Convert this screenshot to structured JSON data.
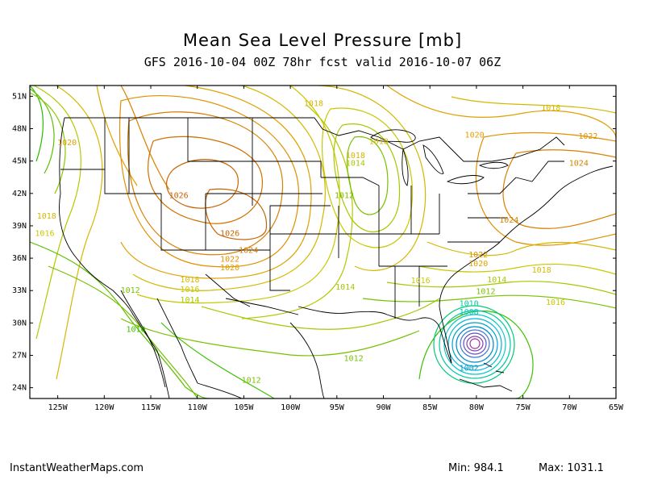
{
  "title": "Mean Sea Level Pressure [mb]",
  "subtitle": "GFS 2016-10-04 00Z 78hr fcst valid 2016-10-07 06Z",
  "footer": {
    "site": "InstantWeatherMaps.com",
    "min": "Min:  984.1",
    "max": "Max: 1031.1"
  },
  "lat_labels": [
    "51N",
    "48N",
    "45N",
    "42N",
    "39N",
    "36N",
    "33N",
    "30N",
    "27N",
    "24N"
  ],
  "lon_labels": [
    "125W",
    "120W",
    "115W",
    "110W",
    "105W",
    "100W",
    "95W",
    "90W",
    "85W",
    "80W",
    "75W",
    "70W",
    "65W"
  ],
  "contour_labels": [
    {
      "text": "1018",
      "color": "#d4b800",
      "lon": -97.5,
      "lat": 50.3
    },
    {
      "text": "1018",
      "color": "#d4b800",
      "lon": -72,
      "lat": 49.9
    },
    {
      "text": "1018",
      "color": "#d4b800",
      "lon": -90.5,
      "lat": 46.8
    },
    {
      "text": "1018",
      "color": "#d4b800",
      "lon": -93,
      "lat": 45.5
    },
    {
      "text": "1014",
      "color": "#a6c800",
      "lon": -93,
      "lat": 44.8
    },
    {
      "text": "1020",
      "color": "#e0a000",
      "lon": -80.2,
      "lat": 47.4
    },
    {
      "text": "1022",
      "color": "#e09000",
      "lon": -68,
      "lat": 47.3
    },
    {
      "text": "1024",
      "color": "#d88000",
      "lon": -69,
      "lat": 44.8
    },
    {
      "text": "1020",
      "color": "#e0a000",
      "lon": -124,
      "lat": 46.7
    },
    {
      "text": "1026",
      "color": "#c86400",
      "lon": -112,
      "lat": 41.8
    },
    {
      "text": "1012",
      "color": "#78c000",
      "lon": -94.2,
      "lat": 41.8
    },
    {
      "text": "1018",
      "color": "#d4b800",
      "lon": -126.2,
      "lat": 39.9
    },
    {
      "text": "1016",
      "color": "#c8c800",
      "lon": -126.4,
      "lat": 38.3
    },
    {
      "text": "1026",
      "color": "#c86400",
      "lon": -106.5,
      "lat": 38.3
    },
    {
      "text": "1024",
      "color": "#d88000",
      "lon": -104.5,
      "lat": 36.7
    },
    {
      "text": "1022",
      "color": "#e09000",
      "lon": -106.5,
      "lat": 35.9
    },
    {
      "text": "1020",
      "color": "#e0a000",
      "lon": -106.5,
      "lat": 35.1
    },
    {
      "text": "1024",
      "color": "#d88000",
      "lon": -76.5,
      "lat": 39.5
    },
    {
      "text": "1022",
      "color": "#e09000",
      "lon": -79.8,
      "lat": 36.3
    },
    {
      "text": "1020",
      "color": "#e0a000",
      "lon": -79.8,
      "lat": 35.5
    },
    {
      "text": "1018",
      "color": "#d4b800",
      "lon": -73,
      "lat": 34.9
    },
    {
      "text": "1018",
      "color": "#d4b800",
      "lon": -110.8,
      "lat": 34.0
    },
    {
      "text": "1016",
      "color": "#c8c800",
      "lon": -110.8,
      "lat": 33.1
    },
    {
      "text": "1014",
      "color": "#a6c800",
      "lon": -110.8,
      "lat": 32.1
    },
    {
      "text": "1012",
      "color": "#78c000",
      "lon": -117.2,
      "lat": 33.0
    },
    {
      "text": "1014",
      "color": "#a6c800",
      "lon": -94.1,
      "lat": 33.3
    },
    {
      "text": "1016",
      "color": "#c8c800",
      "lon": -86,
      "lat": 33.9
    },
    {
      "text": "1014",
      "color": "#a6c800",
      "lon": -77.8,
      "lat": 34.0
    },
    {
      "text": "1012",
      "color": "#78c000",
      "lon": -79,
      "lat": 32.9
    },
    {
      "text": "1016",
      "color": "#c8c800",
      "lon": -71.5,
      "lat": 31.9
    },
    {
      "text": "1010",
      "color": "#3cc000",
      "lon": -116.6,
      "lat": 29.4
    },
    {
      "text": "1012",
      "color": "#78c000",
      "lon": -93.2,
      "lat": 26.7
    },
    {
      "text": "1012",
      "color": "#78c000",
      "lon": -104.2,
      "lat": 24.7
    },
    {
      "text": "1010",
      "color": "#00c8a0",
      "lon": -80.8,
      "lat": 31.8
    },
    {
      "text": "1008",
      "color": "#00c8c8",
      "lon": -80.8,
      "lat": 31.0
    },
    {
      "text": "1002",
      "color": "#00a0d0",
      "lon": -80.8,
      "lat": 25.8
    }
  ]
}
